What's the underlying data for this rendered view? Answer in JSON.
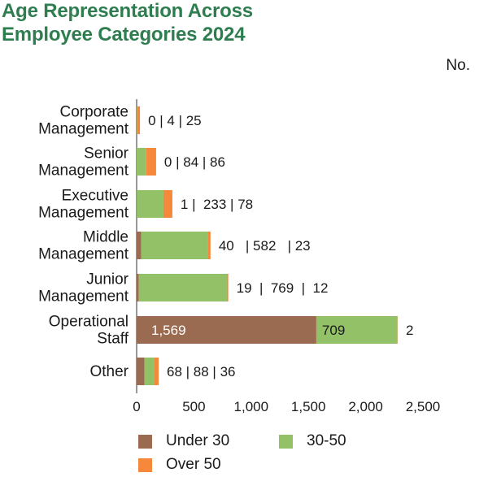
{
  "title_line1": "Age Representation Across",
  "title_line2": "Employee Categories 2024",
  "unit_label": "No.",
  "colors": {
    "under30": "#9b6b51",
    "mid": "#93c167",
    "over50": "#f5883b",
    "title": "#2e7d4f",
    "axis": "#777777"
  },
  "legend": [
    {
      "key": "under30",
      "label": "Under 30"
    },
    {
      "key": "mid",
      "label": "30-50"
    },
    {
      "key": "over50",
      "label": "Over 50"
    }
  ],
  "chart_data": {
    "type": "bar",
    "orientation": "horizontal",
    "stacked": true,
    "categories": [
      [
        "Corporate",
        "Management"
      ],
      [
        "Senior",
        "Management"
      ],
      [
        "Executive",
        "Management"
      ],
      [
        "Middle",
        "Management"
      ],
      [
        "Junior",
        "Management"
      ],
      [
        "Operational",
        "Staff"
      ],
      [
        "Other"
      ]
    ],
    "series": [
      {
        "name": "Under 30",
        "values": [
          0,
          0,
          1,
          40,
          19,
          1569,
          68
        ]
      },
      {
        "name": "30-50",
        "values": [
          4,
          84,
          233,
          582,
          769,
          709,
          88
        ]
      },
      {
        "name": "Over 50",
        "values": [
          25,
          86,
          78,
          23,
          12,
          2,
          36
        ]
      }
    ],
    "value_labels": [
      "0 | 4 | 25",
      "0 | 84 | 86",
      "1 |  233 | 78",
      "40   | 582   | 23",
      "19  |  769  |  12",
      null,
      "68 | 88 | 36"
    ],
    "operational_labels": [
      "1,569",
      "709",
      "2"
    ],
    "xlim": [
      0,
      2500
    ],
    "xticks": [
      0,
      500,
      1000,
      1500,
      2000,
      2500
    ],
    "xtick_labels": [
      "0",
      "500",
      "1,000",
      "1,500",
      "2,000",
      "2,500"
    ],
    "xlabel": "",
    "ylabel": "No."
  }
}
